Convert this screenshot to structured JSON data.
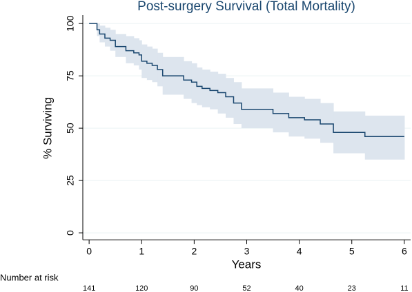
{
  "chart_data": {
    "type": "step",
    "title": "Post-surgery Survival (Total Mortality)",
    "xlabel": "Years",
    "ylabel": "% Surviving",
    "x": [
      0,
      0.15,
      0.2,
      0.3,
      0.4,
      0.5,
      0.7,
      0.85,
      0.95,
      1.0,
      1.1,
      1.2,
      1.3,
      1.4,
      1.8,
      1.95,
      2.05,
      2.15,
      2.3,
      2.45,
      2.6,
      2.75,
      2.9,
      3.5,
      3.8,
      4.1,
      4.4,
      4.65,
      5.25,
      6
    ],
    "values": [
      100,
      97,
      95,
      93,
      92,
      89,
      87,
      86,
      85,
      82,
      81,
      80,
      78,
      75,
      73,
      72,
      70,
      69,
      68,
      67,
      65,
      62,
      59,
      57,
      55,
      54,
      52,
      48,
      46,
      46
    ],
    "ci_upper": [
      100,
      100,
      99,
      98,
      97,
      95,
      94,
      93,
      92,
      90,
      89,
      88,
      86,
      84,
      82,
      81,
      79,
      78,
      77,
      76,
      74,
      72,
      69,
      67,
      65,
      64,
      62,
      58,
      56,
      56
    ],
    "ci_lower": [
      100,
      94,
      91,
      89,
      87,
      84,
      81,
      80,
      78,
      74,
      73,
      72,
      70,
      66,
      64,
      62,
      61,
      60,
      59,
      57,
      55,
      52,
      50,
      48,
      46,
      45,
      43,
      38,
      35,
      35
    ],
    "color": "#1a476f",
    "ci_color": "#dde5ee",
    "xlim": [
      -0.12,
      6.12
    ],
    "xticks": [
      0,
      1,
      2,
      3,
      4,
      5,
      6
    ],
    "ylim": [
      -3,
      104
    ],
    "yticks": [
      0,
      25,
      50,
      75,
      100
    ],
    "grid": true,
    "risk_label": "Number at risk",
    "at_risk": [
      141,
      120,
      90,
      52,
      40,
      23,
      11
    ]
  }
}
